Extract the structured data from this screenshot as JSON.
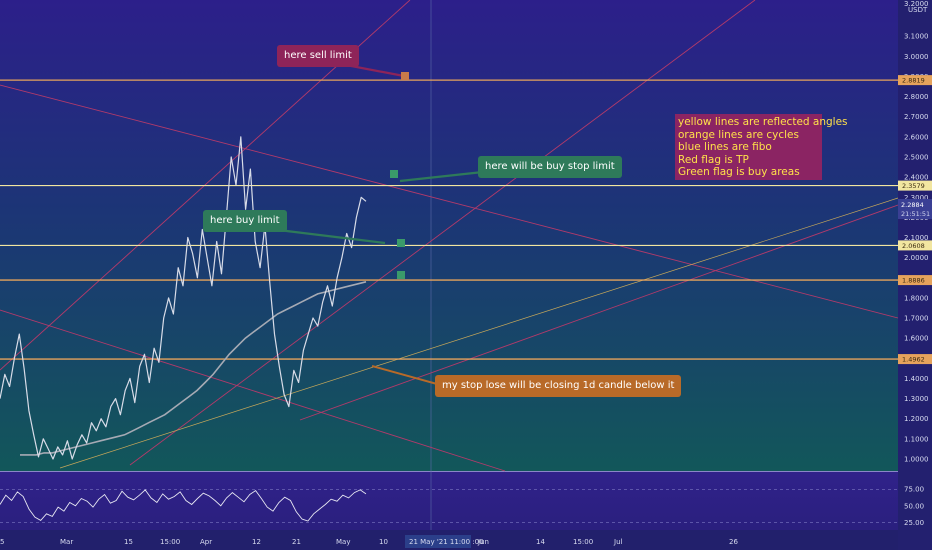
{
  "chart_data": {
    "type": "line",
    "symbol_currency": "USDT",
    "price_axis": {
      "ticks": [
        "3.1000",
        "3.0000",
        "2.9000",
        "2.8000",
        "2.7000",
        "2.6000",
        "2.5000",
        "2.4000",
        "2.3000",
        "2.2000",
        "2.1000",
        "2.0000",
        "1.9000",
        "1.8000",
        "1.7000",
        "1.6000",
        "1.5000",
        "1.4000",
        "1.3000",
        "1.2000",
        "1.1000",
        "1.0000"
      ],
      "top_label": "3.2000",
      "range": [
        0.97,
        3.26
      ]
    },
    "oscillator_axis": {
      "ticks": [
        "75.00",
        "50.00",
        "25.00"
      ],
      "range": [
        18,
        95
      ]
    },
    "x_axis": {
      "ticks": [
        "5",
        "Mar",
        "15",
        "15:00",
        "Apr",
        "12",
        "21",
        "May",
        "10",
        "Jun",
        "14",
        "15:00",
        "Jul",
        "26"
      ],
      "cursor_label": "21 May '21   11:00   :00"
    },
    "current_price": {
      "value": 2.2884,
      "countdown": "21:51:51"
    },
    "levels": [
      {
        "label": "2.8819",
        "value": 2.8819,
        "kind": "orange"
      },
      {
        "label": "2.3579",
        "value": 2.3579,
        "kind": "yellow"
      },
      {
        "label": "2.0608",
        "value": 2.0608,
        "kind": "yellow"
      },
      {
        "label": "1.8886",
        "value": 1.8886,
        "kind": "orange"
      },
      {
        "label": "1.4962",
        "value": 1.4962,
        "kind": "orange"
      }
    ],
    "price_series": [
      1.3,
      1.42,
      1.36,
      1.5,
      1.62,
      1.45,
      1.24,
      1.12,
      1.01,
      1.1,
      1.05,
      1.0,
      1.06,
      1.02,
      1.09,
      1.0,
      1.07,
      1.12,
      1.08,
      1.18,
      1.14,
      1.2,
      1.16,
      1.26,
      1.3,
      1.22,
      1.34,
      1.4,
      1.28,
      1.46,
      1.52,
      1.38,
      1.55,
      1.48,
      1.7,
      1.8,
      1.72,
      1.95,
      1.86,
      2.1,
      2.02,
      1.9,
      2.14,
      2.0,
      1.86,
      2.08,
      1.92,
      2.2,
      2.5,
      2.36,
      2.6,
      2.24,
      2.44,
      2.08,
      1.95,
      2.16,
      1.88,
      1.62,
      1.46,
      1.32,
      1.26,
      1.44,
      1.38,
      1.54,
      1.62,
      1.7,
      1.66,
      1.78,
      1.86,
      1.76,
      1.9,
      2.0,
      2.12,
      2.05,
      2.2,
      2.3,
      2.28
    ],
    "moving_average": [
      1.02,
      1.02,
      1.02,
      1.03,
      1.03,
      1.04,
      1.05,
      1.06,
      1.07,
      1.08,
      1.09,
      1.1,
      1.11,
      1.12,
      1.14,
      1.16,
      1.18,
      1.2,
      1.22,
      1.25,
      1.28,
      1.31,
      1.34,
      1.38,
      1.42,
      1.47,
      1.52,
      1.56,
      1.6,
      1.63,
      1.66,
      1.69,
      1.72,
      1.74,
      1.76,
      1.78,
      1.8,
      1.82,
      1.83,
      1.84,
      1.85,
      1.86,
      1.87,
      1.88
    ],
    "oscillator_series": [
      52,
      66,
      58,
      71,
      64,
      45,
      33,
      28,
      38,
      34,
      48,
      42,
      55,
      50,
      61,
      57,
      48,
      60,
      67,
      54,
      58,
      72,
      63,
      59,
      66,
      74,
      62,
      55,
      68,
      60,
      64,
      71,
      58,
      52,
      61,
      69,
      65,
      58,
      50,
      62,
      70,
      63,
      56,
      67,
      73,
      61,
      48,
      42,
      55,
      63,
      58,
      41,
      30,
      27,
      38,
      45,
      52,
      60,
      57,
      66,
      62,
      70,
      74,
      68
    ]
  },
  "annotations": {
    "sell": "here sell limit",
    "buy_stop": "here will be buy stop limit",
    "buy_limit": "here buy limit",
    "stop_loss": "my stop lose will be closing 1d candle below it",
    "legend": [
      "yellow lines are reflected angles",
      "orange lines are cycles",
      "blue lines are fibo",
      "Red flag is TP",
      "Green flag is buy areas"
    ]
  },
  "colors": {
    "orange_line": "#e6a35c",
    "yellow_line": "#f2e6a0",
    "price": "#d8dce8",
    "moving_average": "#a6aab4",
    "diagonal": "#b23a6a",
    "sell_callout": "#8e2459",
    "green_callout": "#2e7a5a",
    "orange_callout": "#b86a28",
    "legend_bg": "#8b2463",
    "legend_text": "#ffe14a"
  }
}
